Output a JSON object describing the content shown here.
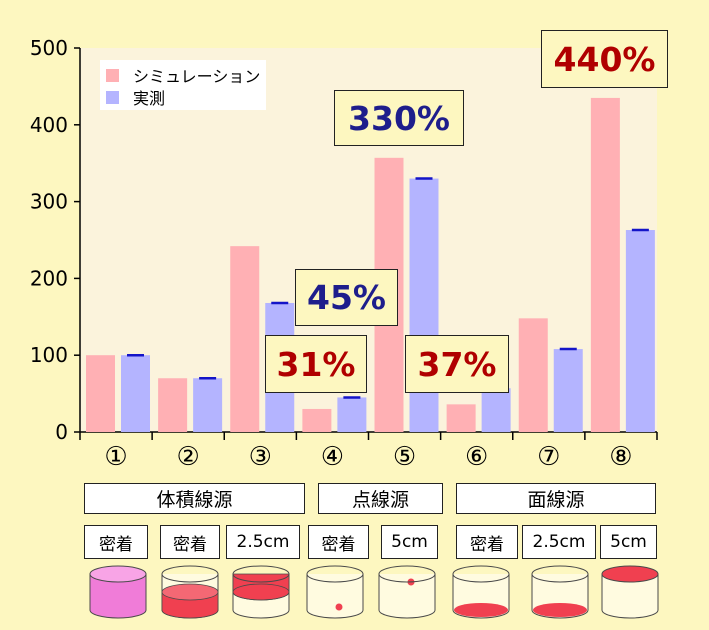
{
  "chart_data": {
    "type": "bar",
    "categories": [
      "①",
      "②",
      "③",
      "④",
      "⑤",
      "⑥",
      "⑦",
      "⑧"
    ],
    "series": [
      {
        "name": "シミュレーション",
        "values": [
          100,
          70,
          242,
          30,
          357,
          36,
          148,
          435
        ]
      },
      {
        "name": "実測",
        "values": [
          100,
          70,
          168,
          45,
          330,
          57,
          108,
          263
        ]
      }
    ],
    "ylim": [
      0,
      500
    ],
    "yticks": [
      "0",
      "100",
      "200",
      "300",
      "400",
      "500"
    ],
    "colors": {
      "simulation": "#ffb0b4",
      "measured": "#b4b4ff",
      "errorbar": "#1414c8",
      "plot_bg": "#fbf3dc"
    },
    "annotations": [
      {
        "text": "330%",
        "color": "#1e1e8c"
      },
      {
        "text": "45%",
        "color": "#1e1e8c"
      },
      {
        "text": "31%",
        "color": "#b00000"
      },
      {
        "text": "37%",
        "color": "#b00000"
      },
      {
        "text": "440%",
        "color": "#b00000"
      }
    ]
  },
  "groups": [
    {
      "label": "体積線源"
    },
    {
      "label": "点線源"
    },
    {
      "label": "面線源"
    }
  ],
  "conditions": [
    "密着",
    "密着",
    "2.5cm",
    "密着",
    "5cm",
    "密着",
    "2.5cm",
    "5cm"
  ],
  "cylinder_icons": [
    "full-volume",
    "lower-volume",
    "upper-volume",
    "point-bottom",
    "point-top",
    "area-bottom-close",
    "area-bottom",
    "area-top"
  ]
}
